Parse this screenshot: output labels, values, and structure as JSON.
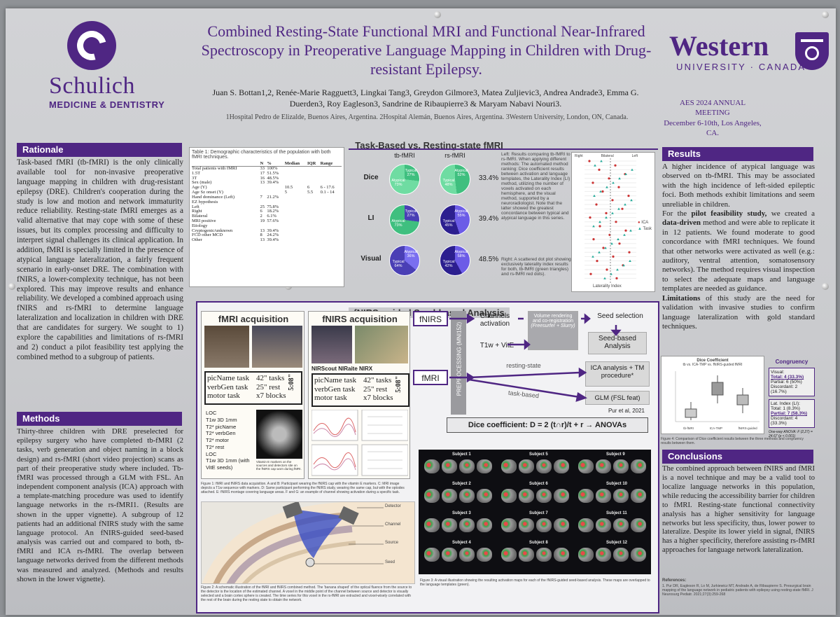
{
  "header": {
    "title": "Combined Resting-State Functional MRI and Functional Near-Infrared Spectroscopy in Preoperative Language Mapping in Children with Drug-resistant Epilepsy.",
    "authors": "Juan S. Bottan1,2, Renée-Marie Ragguett3, Lingkai Tang3, Greydon Gilmore3, Matea Zuljievic3, Andrea Andrade3, Emma G. Duerden3, Roy Eagleson3, Sandrine de Ribaupierre3 & Maryam Nabavi Nouri3.",
    "affiliations": "1Hospital Pedro de Elizalde, Buenos Aires, Argentina. 2Hospital Alemán, Buenos Aires, Argentina. 3Western University, London, ON, Canada.",
    "logo_left": "Schulich",
    "logo_left_sub": "MEDICINE & DENTISTRY",
    "logo_right": "Western",
    "logo_right_sub": "UNIVERSITY · CANADA",
    "meeting": "AES 2024 ANNUAL MEETING",
    "meeting_date": "December 6-10th, Los Angeles, CA."
  },
  "rationale": {
    "heading": "Rationale",
    "text": "Task-based fMRI (tb-fMRI) is the only clinically available tool for non-invasive preoperative language mapping in children with drug-resistant epilepsy (DRE). Children's cooperation during the study is low and motion and network immaturity reduce reliability. Resting-state fMRI emerges as a valid alternative that may cope with some of these issues, but its complex processing and difficulty to interpret signal challenges its clinical application. In addition, fMRI is specially limited in the presence of atypical language lateralization, a fairly frequent scenario in early-onset DRE. The combination with fNIRS, a lower-complexity technique, has not been explored. This may improve results and enhance reliability. We developed a combined approach using fNIRS and rs-fMRI to determine language lateralization and localization in children with DRE that are candidates for surgery. We sought to 1) explore the capabilities and limitations of rs-fMRI and 2) conduct a pilot feasibility test applying the combined method to a subgroup of patients."
  },
  "methods": {
    "heading": "Methods",
    "text": "Thirty-three children with DRE preselected for epilepsy surgery who have completed tb-fMRI (2 tasks, verb generation and object naming in a block design) and rs-fMRI (short video projection) scans as part of their preoperative study where included. Tb-fMRI was processed through a GLM with FSL. An independent component analysis (ICA) approach with a template-matching procedure was used to identify language networks in the rs-fMRI1. (Results are shown in the upper vignette). A subgroup of 12 patients had an additional fNIRS study with the same language protocol. An fNIRS-guided seed-based analysis was carried out and compared to both, tb-fMRI and ICA rs-fMRI. The overlap between language networks derived from the different methods was measured and analyzed. (Methods and results shown in the lower vignette)."
  },
  "table1": {
    "caption": "Table 1: Demographic characteristics of the population with both fMRI techniques.",
    "headers": [
      "",
      "N",
      "%",
      "Median",
      "IQR",
      "Range"
    ],
    "rows": [
      [
        "Total patients with fMRI",
        "33",
        "100%",
        "",
        "",
        ""
      ],
      [
        "1.5T",
        "17",
        "51.5%",
        "",
        "",
        ""
      ],
      [
        "3T",
        "16",
        "48.5%",
        "",
        "",
        ""
      ],
      [
        "Sex (male)",
        "13",
        "39.4%",
        "",
        "",
        ""
      ],
      [
        "Age (Y)",
        "",
        "",
        "10.5",
        "6",
        "6 - 17.6"
      ],
      [
        "Age Sz onset (Y)",
        "",
        "",
        "5",
        "5.5",
        "0.1 - 14"
      ],
      [
        "Hand dominance (Left)",
        "7",
        "21.2%",
        "",
        "",
        ""
      ],
      [
        "EZ hypothesis",
        "",
        "",
        "",
        "",
        ""
      ],
      [
        "Left",
        "25",
        "75.8%",
        "",
        "",
        ""
      ],
      [
        "Right",
        "6",
        "18.2%",
        "",
        "",
        ""
      ],
      [
        "Bilateral",
        "2",
        "6.1%",
        "",
        "",
        ""
      ],
      [
        "MRI positive",
        "19",
        "57.6%",
        "",
        "",
        ""
      ],
      [
        "Etiology",
        "",
        "",
        "",
        "",
        ""
      ],
      [
        "Cryptogenic/unknown",
        "13",
        "39.4%",
        "",
        "",
        ""
      ],
      [
        "FCD other MCD",
        "8",
        "24.2%",
        "",
        "",
        ""
      ],
      [
        "Other",
        "13",
        "39.4%",
        "",
        "",
        ""
      ]
    ]
  },
  "tbrs": {
    "heading": "Task-Based vs. Resting-state fMRI",
    "col1": "tb-fMRI",
    "col2": "rs-fMRI",
    "rows": [
      {
        "label": "Dice",
        "tb": [
          "Typical 27%",
          "Atypical 73%"
        ],
        "rs": [
          "Atypical 52%",
          "Typical 48%"
        ],
        "pct": "33.4%"
      },
      {
        "label": "LI",
        "tb": [
          "Typical 27%",
          "Atypical 73%"
        ],
        "rs": [
          "Atypical 55%",
          "Typical 45%"
        ],
        "pct": "39.4%"
      },
      {
        "label": "Visual",
        "tb": [
          "Atypical 36%",
          "Typical 64%"
        ],
        "rs": [
          "Atypical 58%",
          "Typical 42%"
        ],
        "pct": "48.5%"
      }
    ],
    "left_note": "Left: Results comparing tb-fMRI to rs-fMRI. When applying different methods: The automated method ranking: Dice coefficient results between activation and language templates, the Laterality Index (LI) method, utilizing the number of voxels activated on each hemisphere, and the visual method, supported by a neuroradiologist. Note that the latter showed the greatest concordance between typical and atypical language in this series.",
    "right_note": "Right: A scattered dot plot showing exclusively laterality index results for both, tb-fMRI (green triangles) and rs-fMRI red dots).",
    "scatter_legend": [
      "ICA",
      "Task"
    ],
    "scatter_xlabel": "Laterality Index",
    "scatter_top": [
      "Right",
      "Bilateral",
      "Left"
    ]
  },
  "fnirs": {
    "heading": "fNIRS-guided Seed-based Analysis",
    "fmri_acq": "fMRI acquisition",
    "fnirs_acq": "fNIRS acquisition",
    "tasks": [
      "picName task",
      "verbGen task",
      "motor task"
    ],
    "timing": [
      "42\" tasks",
      "25\" rest",
      "x7 blocks"
    ],
    "duration": "5:08\"",
    "device": "NIRScout NIRaite NIRX",
    "seq": [
      "LOC",
      "T1w 3D 1mm",
      "T2* picName",
      "T2* verbGen",
      "T2* motor",
      "T2* rest",
      "LOC",
      "T1w 3D 1mm (with VitE seeds)"
    ],
    "vitE": "Vitamin E markers on the sources and detectors site on the fNIRS cap worn during fMRI.",
    "fig1": "Figure 1: fMRI and fNIRS data acquisition. A and B: Participant wearing the fNIRS cap with the vitamin E markers. C: MRI image depicts a T1w sequence with markers. D: Same participant performing the fNIRS study, wearing the same cap, but with the optodes attached. E: fNIRS montage covering language areas. F and G: an example of channel showing activation during a specific task.",
    "labels": [
      "Detector",
      "Channel",
      "Source",
      "Seed"
    ],
    "fig2": "Figure 2: A schematic illustration of the fMRI and fNIRS combined method. The 'banana shaped' of the optical fluence from the source to the detector is the location of the estimated channel. A voxel in the middle point of the channel between source and detector is visually selected and a brain cortex sphere is created. The time series for this voxel in the rs-fMRI are extracted and voxel-wisely correlated with the rest of the brain during the resting state to obtain the network.",
    "flow": {
      "fnirs": "fNIRS",
      "fmri": "fMRI",
      "preproc": "PREPROCESSING (MNI152)",
      "channels": "Channels activation",
      "volume": "Volume rendering and co-registration",
      "tools": "(Freesurfer + Slurry)",
      "t1w": "T1w + VitE",
      "seedsel": "Seed selection",
      "seedan": "Seed-based Analysis",
      "resting": "resting-state",
      "task": "task-based",
      "ica": "ICA analysis + TM procedure*",
      "glm": "GLM (FSL feat)",
      "ref": "Pur et al, 2021",
      "dice": "Dice coefficient: D = 2 (t∩r)/t + r → ANOVAs"
    },
    "subjects": [
      "Subject 1",
      "Subject 2",
      "Subject 3",
      "Subject 4",
      "Subject 5",
      "Subject 6",
      "Subject 7",
      "Subject 8",
      "Subject 9",
      "Subject 10",
      "Subject 11",
      "Subject 12"
    ],
    "fig3": "Figure 3: A visual illustration showing the resulting activation maps for each of the fNIRS-guided seed-based analysis. These maps are overlapped to the language templates (green)."
  },
  "results": {
    "heading": "Results",
    "p1": "A higher incidence of atypical language was observed on tb-fMRI. This may be associated with the high incidence of left-sided epileptic foci. Both methods exhibit limitations and seem unreliable in children.",
    "p2a": "For the ",
    "p2b": "pilot feasibility study,",
    "p2c": " we created a ",
    "p2d": "data-driven",
    "p2e": " method and were able to replicate it in 12 patients. We found moderate to good concordance with fMRI techniques. We found that other networks were activated as well (e.g.: auditory, ventral attention, somatosensory networks). The method requires visual inspection to select the adequate maps and language templates are needed as guidance.",
    "p3a": "Limitations",
    "p3b": " of this study are the need for validation with invasive studies to confirm language lateralization with gold standard techniques.",
    "boxplot_title": "Dice Coefficient",
    "boxplot_sub": "tb vs. ICA-TMP vs. fNIRS-guided fMRI",
    "boxplot_x": [
      "tb-fMRI",
      "ICA-TMP",
      "fNIRS-guided"
    ],
    "congruency": "Congruency",
    "visual": [
      "Visual:",
      "Total: 4 (33.3%)",
      "Partial: 6 (50%)",
      "Discordant: 2 (16.7%)"
    ],
    "lat": [
      "Lat. Index (LI):",
      "Total: 1 (8.3%)",
      "Partial: 7 (58.3%)",
      "Discordant: 4 (33.3%)"
    ],
    "anova": "One-way ANOVA: F (2,27) = 24.67 (p < 0.001)",
    "fig4": "Figure 4: Comparison of Dice coefficient results between the three methods and congruency results between them."
  },
  "conclusions": {
    "heading": "Conclusions",
    "text": "The combined approach between fNIRS and fMRI is a novel technique and may be a valid tool to localize language networks in this population, while reducing the accessibility barrier for children to fMRI. Resting-state functional connectivity analysis has a higher sensitivity for language networks but less specificity, thus, lower power to lateralize. Despite its lower yield in signal, fNIRS has a higher specificity, therefore assisting rs-fMRI approaches for language network lateralization.",
    "ref_head": "References:",
    "ref": "1. Pur DR, Eagleson R, Lo M, Jurkiewicz MT, Andrade A, de Ribaupierre S. Presurgical brain mapping of the language network in pediatric patients with epilepsy using resting-state fMRI. J Neurosurg Pediatr. 2021;27(3):259-268"
  },
  "colors": {
    "purple": "#4f2683",
    "typical": "#3fbf7f",
    "atypical": "#4a3fb5",
    "rs_typ": "#6c5ce7",
    "rs_atyp": "#2c1f8f"
  }
}
